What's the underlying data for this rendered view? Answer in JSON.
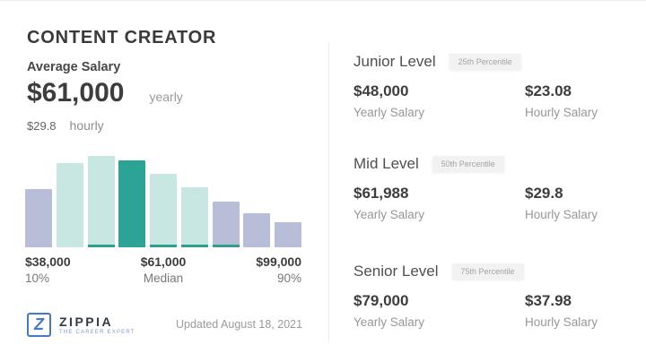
{
  "header": {
    "title": "CONTENT CREATOR"
  },
  "average": {
    "label": "Average Salary",
    "yearly_value": "$61,000",
    "yearly_unit": "yearly",
    "hourly_value": "$29.8",
    "hourly_unit": "hourly"
  },
  "chart_data": {
    "type": "bar",
    "title": "Content Creator salary distribution",
    "values": [
      0.64,
      0.92,
      1.0,
      0.95,
      0.8,
      0.66,
      0.5,
      0.37,
      0.27
    ],
    "units": "relative bar height (no y-axis shown)",
    "bar_colors": [
      "lavender",
      "teal_light",
      "teal_light",
      "teal_dark",
      "teal_light",
      "teal_light",
      "lavender",
      "lavender",
      "lavender"
    ],
    "highlighted_bar_index": 3,
    "underline_bar_indices": [
      2,
      3,
      4,
      5,
      6
    ],
    "grid": false,
    "legend": "none",
    "x_axis_range": [
      "$38,000",
      "$99,000"
    ],
    "annotations": [
      {
        "value": "$38,000",
        "label": "10%"
      },
      {
        "value": "$61,000",
        "label": "Median"
      },
      {
        "value": "$99,000",
        "label": "90%"
      }
    ]
  },
  "levels": [
    {
      "name": "Junior Level",
      "badge": "25th Percentile",
      "yearly": "$48,000",
      "yearly_label": "Yearly Salary",
      "hourly": "$23.08",
      "hourly_label": "Hourly Salary"
    },
    {
      "name": "Mid Level",
      "badge": "50th Percentile",
      "yearly": "$61,988",
      "yearly_label": "Yearly Salary",
      "hourly": "$29.8",
      "hourly_label": "Hourly Salary"
    },
    {
      "name": "Senior Level",
      "badge": "75th Percentile",
      "yearly": "$79,000",
      "yearly_label": "Yearly Salary",
      "hourly": "$37.98",
      "hourly_label": "Hourly Salary"
    }
  ],
  "footer": {
    "updated": "Updated August 18, 2021",
    "logo": {
      "mark": "Z",
      "name": "ZIPPIA",
      "tagline": "THE CAREER EXPERT"
    }
  },
  "colors": {
    "accent_teal": "#2ba495",
    "teal_light": "#c9e7e2",
    "lavender": "#b9bed8",
    "text_dark": "#3d3d3d",
    "text_gray": "#9a9a9a",
    "divider": "#ececec",
    "badge_bg": "#f2f2f2",
    "logo_blue": "#4579cc"
  }
}
